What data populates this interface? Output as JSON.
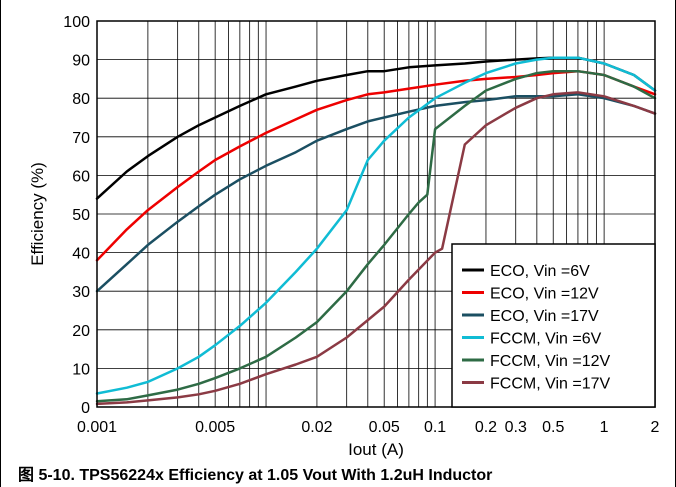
{
  "chart_data": {
    "type": "line",
    "xscale": "log",
    "xlabel": "Iout (A)",
    "ylabel": "Efficiency (%)",
    "xlim": [
      0.001,
      2
    ],
    "ylim": [
      0,
      100
    ],
    "xticks": [
      {
        "value": 0.001,
        "label": "0.001"
      },
      {
        "value": 0.005,
        "label": "0.005"
      },
      {
        "value": 0.02,
        "label": "0.02"
      },
      {
        "value": 0.05,
        "label": "0.05"
      },
      {
        "value": 0.1,
        "label": "0.1"
      },
      {
        "value": 0.2,
        "label": "0.2"
      },
      {
        "value": 0.3,
        "label": "0.3"
      },
      {
        "value": 0.5,
        "label": "0.5"
      },
      {
        "value": 1,
        "label": "1"
      },
      {
        "value": 2,
        "label": "2"
      }
    ],
    "yticks": [
      0,
      10,
      20,
      30,
      40,
      50,
      60,
      70,
      80,
      90,
      100
    ],
    "grid": true,
    "legend_position": "bottom-right",
    "series": [
      {
        "name": "ECO, Vin =6V",
        "color": "#000000",
        "x": [
          0.001,
          0.0015,
          0.002,
          0.003,
          0.004,
          0.005,
          0.007,
          0.01,
          0.015,
          0.02,
          0.03,
          0.04,
          0.05,
          0.07,
          0.1,
          0.15,
          0.2,
          0.3,
          0.4,
          0.5,
          0.7,
          1,
          1.5,
          2
        ],
        "y": [
          54,
          61,
          65,
          70,
          73,
          75,
          78,
          81,
          83,
          84.5,
          86,
          87,
          87,
          88,
          88.5,
          89,
          89.5,
          90,
          90.3,
          90.5,
          90.5,
          89,
          86,
          82
        ]
      },
      {
        "name": "ECO, Vin =12V",
        "color": "#ee0000",
        "x": [
          0.001,
          0.0015,
          0.002,
          0.003,
          0.004,
          0.005,
          0.007,
          0.01,
          0.015,
          0.02,
          0.03,
          0.04,
          0.05,
          0.07,
          0.1,
          0.15,
          0.2,
          0.3,
          0.4,
          0.5,
          0.7,
          1,
          1.5,
          2
        ],
        "y": [
          38,
          46,
          51,
          57,
          61,
          64,
          67.5,
          71,
          74.5,
          77,
          79.5,
          81,
          81.5,
          82.5,
          83.5,
          84.5,
          85,
          85.5,
          86,
          86.5,
          87,
          86,
          83,
          81
        ]
      },
      {
        "name": "ECO, Vin =17V",
        "color": "#1b4f62",
        "x": [
          0.001,
          0.0015,
          0.002,
          0.003,
          0.004,
          0.005,
          0.007,
          0.01,
          0.015,
          0.02,
          0.03,
          0.04,
          0.05,
          0.07,
          0.1,
          0.15,
          0.2,
          0.3,
          0.4,
          0.5,
          0.7,
          1,
          1.5,
          2
        ],
        "y": [
          30,
          37,
          42,
          48,
          52,
          55,
          59,
          62.5,
          66,
          69,
          72,
          74,
          75,
          76.5,
          78,
          79,
          79.5,
          80.5,
          80.5,
          80.5,
          81,
          80,
          78,
          76
        ]
      },
      {
        "name": "FCCM, Vin =6V",
        "color": "#10bcd4",
        "x": [
          0.001,
          0.0015,
          0.002,
          0.003,
          0.004,
          0.005,
          0.007,
          0.01,
          0.015,
          0.02,
          0.03,
          0.04,
          0.05,
          0.07,
          0.1,
          0.15,
          0.2,
          0.3,
          0.4,
          0.5,
          0.7,
          1,
          1.5,
          2
        ],
        "y": [
          3.5,
          5,
          6.5,
          10,
          13,
          16,
          21,
          27,
          35,
          41,
          51,
          64,
          69,
          75,
          80,
          84,
          86.5,
          89,
          90,
          90.5,
          90.5,
          89,
          86,
          82
        ]
      },
      {
        "name": "FCCM, Vin =12V",
        "color": "#2e6b45",
        "x": [
          0.001,
          0.0015,
          0.002,
          0.003,
          0.004,
          0.005,
          0.007,
          0.01,
          0.015,
          0.02,
          0.03,
          0.04,
          0.05,
          0.07,
          0.08,
          0.09,
          0.1,
          0.15,
          0.2,
          0.3,
          0.4,
          0.5,
          0.7,
          1,
          1.5,
          2
        ],
        "y": [
          1.5,
          2,
          3,
          4.5,
          6,
          7.5,
          10,
          13,
          18,
          22,
          30,
          37,
          42,
          50,
          53,
          55,
          72,
          78,
          82,
          85,
          86.5,
          87,
          87,
          86,
          83,
          80
        ]
      },
      {
        "name": "FCCM, Vin =17V",
        "color": "#8b3a44",
        "x": [
          0.001,
          0.0015,
          0.002,
          0.003,
          0.004,
          0.005,
          0.007,
          0.01,
          0.015,
          0.02,
          0.03,
          0.04,
          0.05,
          0.07,
          0.1,
          0.11,
          0.15,
          0.2,
          0.3,
          0.4,
          0.5,
          0.7,
          1,
          1.5,
          2
        ],
        "y": [
          0.8,
          1.2,
          1.7,
          2.5,
          3.3,
          4.2,
          6,
          8.5,
          11,
          13,
          18,
          22.5,
          26,
          33,
          40,
          41,
          68,
          73,
          77.5,
          80,
          81,
          81.5,
          80.5,
          78,
          76
        ]
      }
    ]
  },
  "caption": "图 5-10. TPS56224x Efficiency at 1.05 Vout With 1.2uH Inductor"
}
